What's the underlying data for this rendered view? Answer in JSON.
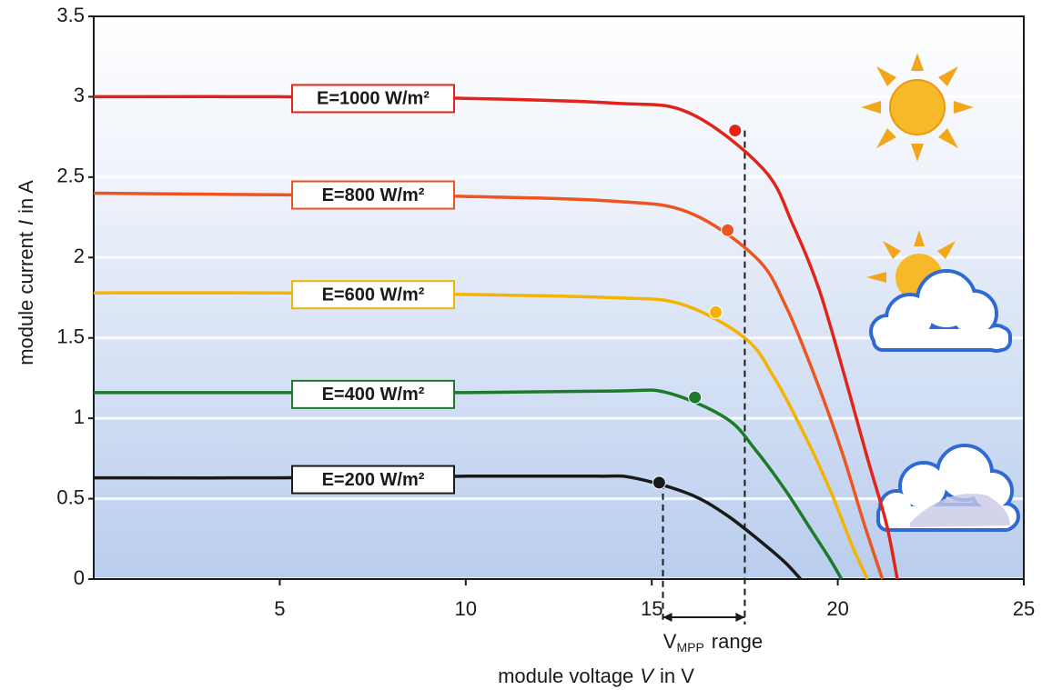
{
  "chart_data": {
    "type": "line",
    "xlabel": {
      "text": "module voltage",
      "symbol": "V",
      "unit": "in V"
    },
    "ylabel": {
      "text": "module current",
      "symbol": "I",
      "unit": "in A"
    },
    "xlim": [
      0,
      25
    ],
    "ylim": [
      0,
      3.5
    ],
    "xticks": [
      5,
      10,
      15,
      20,
      25
    ],
    "yticks": [
      0,
      0.5,
      1,
      1.5,
      2,
      2.5,
      3,
      3.5
    ],
    "grid": true,
    "series": [
      {
        "name": "E=1000 W/m²",
        "color": "#e2231a",
        "x": [
          0,
          5,
          10,
          14,
          16,
          18,
          18.8,
          19.5,
          20.2,
          20.8,
          21.3,
          21.6
        ],
        "values": [
          3.0,
          3.0,
          2.99,
          2.96,
          2.9,
          2.55,
          2.2,
          1.8,
          1.25,
          0.75,
          0.35,
          0
        ],
        "mpp_x": 17.24,
        "mpp_y": 2.79
      },
      {
        "name": "E=800 W/m²",
        "color": "#ec5420",
        "x": [
          0,
          5,
          10,
          14,
          16,
          17.8,
          18.6,
          19.4,
          20.1,
          20.7,
          21.2
        ],
        "values": [
          2.4,
          2.39,
          2.38,
          2.35,
          2.28,
          2.0,
          1.7,
          1.25,
          0.8,
          0.35,
          0
        ],
        "mpp_x": 17.04,
        "mpp_y": 2.17
      },
      {
        "name": "E=600 W/m²",
        "color": "#f3b300",
        "x": [
          0,
          5,
          10,
          14,
          15.8,
          17.5,
          18.3,
          19.1,
          19.8,
          20.4,
          20.8
        ],
        "values": [
          1.78,
          1.78,
          1.77,
          1.75,
          1.71,
          1.5,
          1.25,
          0.9,
          0.55,
          0.2,
          0
        ],
        "mpp_x": 16.72,
        "mpp_y": 1.66
      },
      {
        "name": "E=400 W/m²",
        "color": "#1d7a2b",
        "x": [
          0,
          5,
          10,
          14,
          15.4,
          17,
          17.8,
          18.6,
          19.3,
          19.8,
          20.1
        ],
        "values": [
          1.16,
          1.16,
          1.16,
          1.17,
          1.16,
          1.0,
          0.8,
          0.55,
          0.3,
          0.12,
          0
        ],
        "mpp_x": 16.16,
        "mpp_y": 1.13
      },
      {
        "name": "E=200 W/m²",
        "color": "#1a1a1a",
        "x": [
          0,
          5,
          10,
          13.5,
          14.5,
          16,
          17,
          18,
          18.6,
          19.0
        ],
        "values": [
          0.63,
          0.63,
          0.64,
          0.64,
          0.63,
          0.53,
          0.4,
          0.22,
          0.1,
          0
        ],
        "mpp_x": 15.2,
        "mpp_y": 0.6
      }
    ],
    "vmpp_range": [
      15.3,
      17.5
    ],
    "vmpp_label": {
      "symbol": "V",
      "subscript": "MPP",
      "text": "range"
    }
  }
}
